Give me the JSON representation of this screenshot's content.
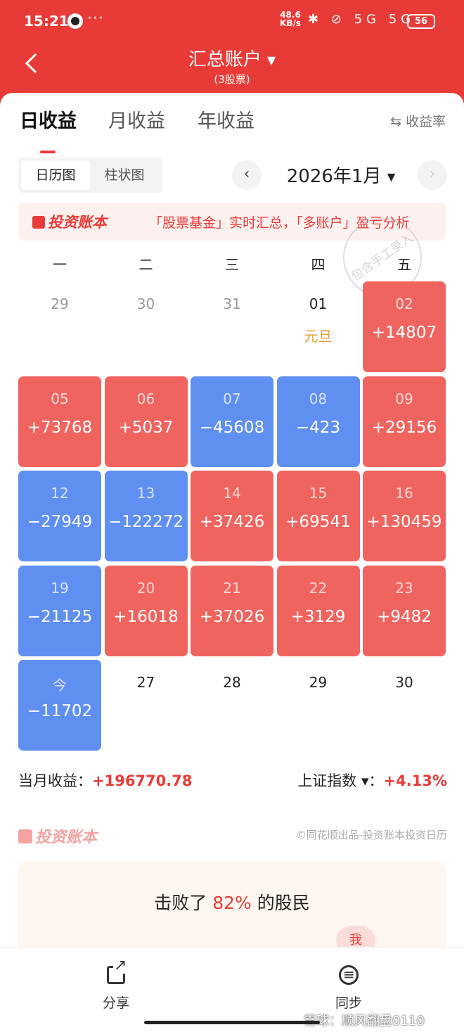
{
  "status_bar": {
    "time": "15:21",
    "dots": "···",
    "net_speed": "48.6",
    "net_unit": "KB/s",
    "icons": "✱ ⊘ 5G 5G",
    "battery": "56"
  },
  "header": {
    "title": "汇总账户",
    "subtitle": "(3股票)"
  },
  "tabs": [
    {
      "label": "日收益"
    },
    {
      "label": "月收益"
    },
    {
      "label": "年收益"
    }
  ],
  "rate_toggle": {
    "icon": "⇆",
    "label": "收益率"
  },
  "view_toggle": {
    "calendar": "日历图",
    "bar": "柱状图"
  },
  "month_nav": {
    "prev": "‹",
    "next": "›",
    "month": "2026年1月"
  },
  "ad": {
    "logo": "投资账本",
    "text": "「股票基金」实时汇总，「多账户」盈亏分析"
  },
  "stamp": {
    "text": "包含手工录入"
  },
  "weekdays": [
    "一",
    "二",
    "三",
    "四",
    "五"
  ],
  "calendar": {
    "rows": [
      [
        {
          "day": "29",
          "kind": "muted"
        },
        {
          "day": "30",
          "kind": "muted"
        },
        {
          "day": "31",
          "kind": "muted"
        },
        {
          "day": "01",
          "kind": "plain",
          "holiday": "元旦"
        },
        {
          "day": "02",
          "kind": "gain",
          "pnl": "+14807"
        }
      ],
      [
        {
          "day": "05",
          "kind": "gain",
          "pnl": "+73768"
        },
        {
          "day": "06",
          "kind": "gain",
          "pnl": "+5037"
        },
        {
          "day": "07",
          "kind": "loss",
          "pnl": "−45608"
        },
        {
          "day": "08",
          "kind": "loss",
          "pnl": "−423"
        },
        {
          "day": "09",
          "kind": "gain",
          "pnl": "+29156"
        }
      ],
      [
        {
          "day": "12",
          "kind": "loss",
          "pnl": "−27949"
        },
        {
          "day": "13",
          "kind": "loss",
          "pnl": "−122272"
        },
        {
          "day": "14",
          "kind": "gain",
          "pnl": "+37426"
        },
        {
          "day": "15",
          "kind": "gain",
          "pnl": "+69541"
        },
        {
          "day": "16",
          "kind": "gain",
          "pnl": "+130459"
        }
      ],
      [
        {
          "day": "19",
          "kind": "loss",
          "pnl": "−21125"
        },
        {
          "day": "20",
          "kind": "gain",
          "pnl": "+16018"
        },
        {
          "day": "21",
          "kind": "gain",
          "pnl": "+37026"
        },
        {
          "day": "22",
          "kind": "gain",
          "pnl": "+3129"
        },
        {
          "day": "23",
          "kind": "gain",
          "pnl": "+9482"
        }
      ],
      [
        {
          "day": "今",
          "kind": "loss",
          "pnl": "−11702"
        },
        {
          "day": "27",
          "kind": "plain"
        },
        {
          "day": "28",
          "kind": "plain"
        },
        {
          "day": "29",
          "kind": "plain"
        },
        {
          "day": "30",
          "kind": "plain"
        }
      ]
    ]
  },
  "summary": {
    "month_label": "当月收益：",
    "month_value": "+196770.78",
    "index_label": "上证指数",
    "index_caret": "▾",
    "index_colon": "：",
    "index_value": "+4.13%"
  },
  "brand": {
    "logo": "投资账本",
    "credit": "©同花顺出品-投资账本投资日历"
  },
  "rank": {
    "prefix": "击败了 ",
    "pct": "82%",
    "suffix": " 的股民",
    "me": "我"
  },
  "bottom_bar": {
    "share": "分享",
    "sync": "同步"
  },
  "watermark": "雪球：顺风翻盘0110",
  "colors": {
    "brand_red": "#e83a37",
    "gain": "#f0645f",
    "loss": "#5f8ff0",
    "holiday": "#e4a03a"
  }
}
